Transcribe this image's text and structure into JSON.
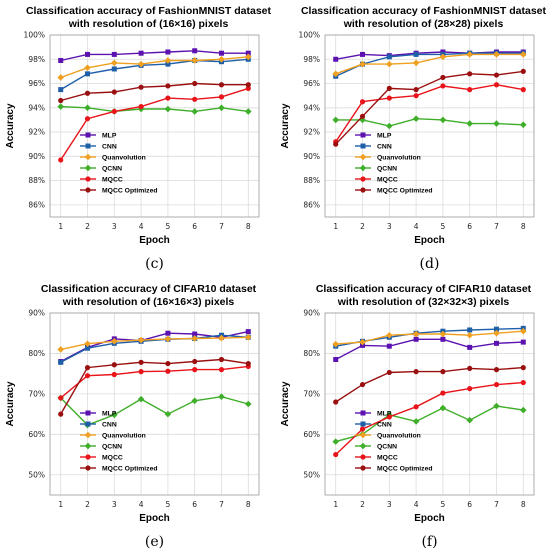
{
  "series_styles": [
    {
      "name": "MLP",
      "color": "#5b12b0",
      "marker": "square"
    },
    {
      "name": "CNN",
      "color": "#1f5fa8",
      "marker": "square"
    },
    {
      "name": "Quanvolution",
      "color": "#f0a020",
      "marker": "diamond"
    },
    {
      "name": "QCNN",
      "color": "#3fae2a",
      "marker": "diamond"
    },
    {
      "name": "MQCC",
      "color": "#e8141a",
      "marker": "circle"
    },
    {
      "name": "MQCC Optimized",
      "color": "#9a1010",
      "marker": "circle"
    }
  ],
  "chart_data": [
    {
      "type": "line",
      "title_lines": [
        "Classification accuracy of FashionMNIST dataset",
        "with resolution of (16×16) pixels"
      ],
      "xlabel": "Epoch",
      "ylabel": "Accuracy",
      "caption": "(c)",
      "x": [
        1,
        2,
        3,
        4,
        5,
        6,
        7,
        8
      ],
      "ylim": [
        85,
        100
      ],
      "yticks": [
        86,
        88,
        90,
        92,
        94,
        96,
        98,
        100
      ],
      "ytick_suffix": "%",
      "legend_position": "lower right",
      "series": [
        {
          "name": "MLP",
          "values": [
            97.9,
            98.4,
            98.4,
            98.5,
            98.6,
            98.7,
            98.5,
            98.5
          ]
        },
        {
          "name": "CNN",
          "values": [
            95.5,
            96.8,
            97.2,
            97.5,
            97.6,
            97.9,
            97.8,
            98.0
          ]
        },
        {
          "name": "Quanvolution",
          "values": [
            96.5,
            97.3,
            97.7,
            97.6,
            97.9,
            97.9,
            98.0,
            98.2
          ]
        },
        {
          "name": "QCNN",
          "values": [
            94.1,
            94.0,
            93.7,
            93.9,
            93.9,
            93.7,
            94.0,
            93.7
          ]
        },
        {
          "name": "MQCC",
          "values": [
            89.7,
            93.1,
            93.7,
            94.1,
            94.8,
            94.7,
            94.9,
            95.6
          ]
        },
        {
          "name": "MQCC Optimized",
          "values": [
            94.6,
            95.2,
            95.3,
            95.7,
            95.8,
            96.0,
            95.9,
            95.9
          ]
        }
      ]
    },
    {
      "type": "line",
      "title_lines": [
        "Classification accuracy of FashionMNIST dataset",
        "with resolution of (28×28) pixels"
      ],
      "xlabel": "Epoch",
      "ylabel": "Accuracy",
      "caption": "(d)",
      "x": [
        1,
        2,
        3,
        4,
        5,
        6,
        7,
        8
      ],
      "ylim": [
        85,
        100
      ],
      "yticks": [
        86,
        88,
        90,
        92,
        94,
        96,
        98,
        100
      ],
      "ytick_suffix": "%",
      "legend_position": "lower right",
      "series": [
        {
          "name": "MLP",
          "values": [
            98.0,
            98.4,
            98.3,
            98.5,
            98.6,
            98.5,
            98.6,
            98.6
          ]
        },
        {
          "name": "CNN",
          "values": [
            96.6,
            97.6,
            98.2,
            98.4,
            98.4,
            98.5,
            98.5,
            98.5
          ]
        },
        {
          "name": "Quanvolution",
          "values": [
            96.8,
            97.6,
            97.6,
            97.7,
            98.2,
            98.4,
            98.4,
            98.4
          ]
        },
        {
          "name": "QCNN",
          "values": [
            93.0,
            93.0,
            92.5,
            93.1,
            93.0,
            92.7,
            92.7,
            92.6
          ]
        },
        {
          "name": "MQCC",
          "values": [
            91.2,
            94.5,
            94.8,
            95.0,
            95.8,
            95.5,
            95.9,
            95.5
          ]
        },
        {
          "name": "MQCC Optimized",
          "values": [
            91.0,
            93.3,
            95.6,
            95.5,
            96.5,
            96.8,
            96.7,
            97.0
          ]
        }
      ]
    },
    {
      "type": "line",
      "title_lines": [
        "Classification accuracy of CIFAR10 dataset",
        "with resolution of (16×16×3) pixels"
      ],
      "xlabel": "Epoch",
      "ylabel": "Accuracy",
      "caption": "(e)",
      "x": [
        1,
        2,
        3,
        4,
        5,
        6,
        7,
        8
      ],
      "ylim": [
        45,
        90
      ],
      "yticks": [
        50,
        60,
        70,
        80,
        90
      ],
      "ytick_suffix": "%",
      "legend_position": "lower right",
      "series": [
        {
          "name": "MLP",
          "values": [
            78.0,
            81.5,
            83.6,
            83.2,
            85.0,
            84.8,
            84.0,
            85.4
          ]
        },
        {
          "name": "CNN",
          "values": [
            77.8,
            81.3,
            82.5,
            83.0,
            83.5,
            83.7,
            84.5,
            84.0
          ]
        },
        {
          "name": "Quanvolution",
          "values": [
            81.0,
            82.4,
            83.0,
            83.3,
            83.6,
            83.7,
            83.8,
            84.0
          ]
        },
        {
          "name": "QCNN",
          "values": [
            69.0,
            62.3,
            64.8,
            68.7,
            65.0,
            68.3,
            69.3,
            67.5
          ]
        },
        {
          "name": "MQCC",
          "values": [
            69.0,
            74.5,
            74.8,
            75.5,
            75.6,
            76.0,
            76.0,
            76.8
          ]
        },
        {
          "name": "MQCC Optimized",
          "values": [
            65.0,
            76.5,
            77.2,
            77.8,
            77.5,
            78.0,
            78.5,
            77.5
          ]
        }
      ]
    },
    {
      "type": "line",
      "title_lines": [
        "Classification accuracy of CIFAR10 dataset",
        "with resolution of (32×32×3) pixels"
      ],
      "xlabel": "Epoch",
      "ylabel": "Accuracy",
      "caption": "(f)",
      "x": [
        1,
        2,
        3,
        4,
        5,
        6,
        7,
        8
      ],
      "ylim": [
        45,
        90
      ],
      "yticks": [
        50,
        60,
        70,
        80,
        90
      ],
      "ytick_suffix": "%",
      "legend_position": "lower right",
      "series": [
        {
          "name": "MLP",
          "values": [
            78.5,
            82.0,
            81.8,
            83.5,
            83.5,
            81.5,
            82.5,
            82.8
          ]
        },
        {
          "name": "CNN",
          "values": [
            81.8,
            83.0,
            84.0,
            85.0,
            85.5,
            85.8,
            86.0,
            86.2
          ]
        },
        {
          "name": "Quanvolution",
          "values": [
            82.3,
            82.8,
            84.5,
            84.8,
            84.8,
            84.5,
            85.0,
            85.5
          ]
        },
        {
          "name": "QCNN",
          "values": [
            58.2,
            60.0,
            64.8,
            63.2,
            66.5,
            63.5,
            67.0,
            66.0
          ]
        },
        {
          "name": "MQCC",
          "values": [
            55.0,
            61.3,
            64.3,
            66.8,
            70.2,
            71.3,
            72.3,
            72.8
          ]
        },
        {
          "name": "MQCC Optimized",
          "values": [
            68.0,
            72.3,
            75.3,
            75.5,
            75.5,
            76.3,
            76.0,
            76.5
          ]
        }
      ]
    }
  ]
}
